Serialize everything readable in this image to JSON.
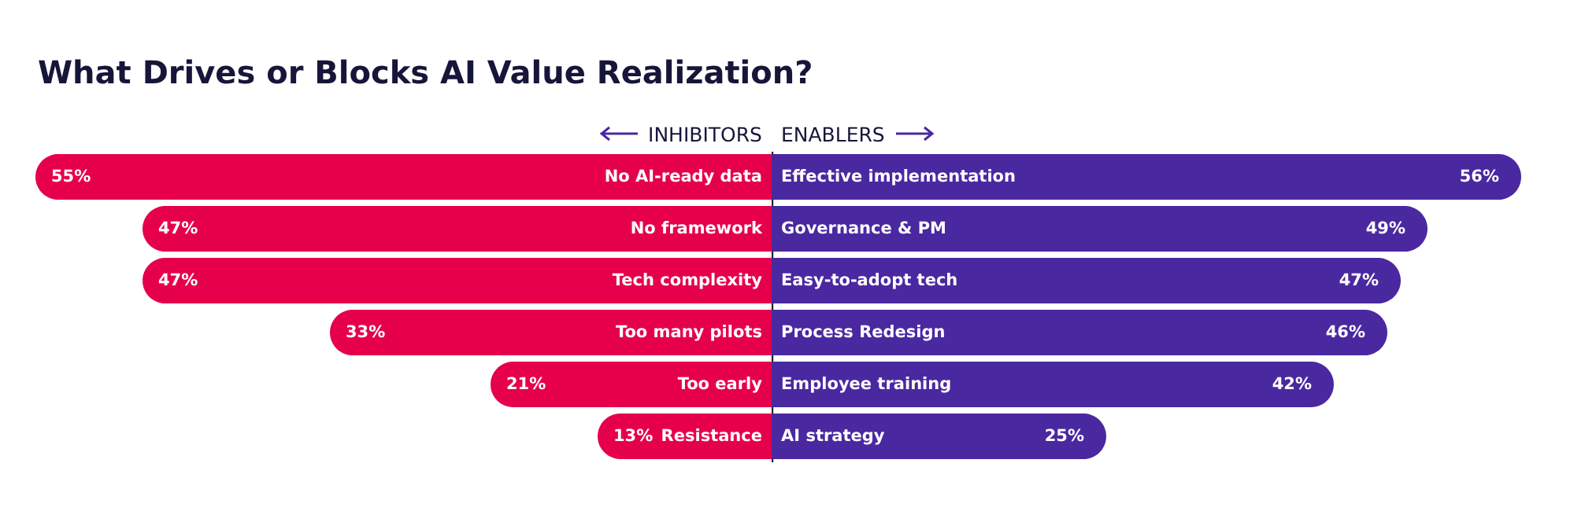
{
  "chart_data": [
    {
      "type": "bar",
      "orientation": "horizontal",
      "title": "What Drives or Blocks AI Value Realization?",
      "subtitle": "INHIBITORS",
      "categories": [
        "No AI-ready data",
        "No framework",
        "Tech complexity",
        "Too many pilots",
        "Too early",
        "Resistance"
      ],
      "values": [
        55,
        47,
        47,
        33,
        21,
        13
      ],
      "value_labels": [
        "55%",
        "47%",
        "47%",
        "33%",
        "21%",
        "13%"
      ],
      "color": "#e6004c",
      "xlim": [
        56,
        0
      ]
    },
    {
      "type": "bar",
      "orientation": "horizontal",
      "subtitle": "ENABLERS",
      "categories": [
        "Effective implementation",
        "Governance & PM",
        "Easy-to-adopt tech",
        "Process Redesign",
        "Employee training",
        "AI strategy"
      ],
      "values": [
        56,
        49,
        47,
        46,
        42,
        25
      ],
      "value_labels": [
        "56%",
        "49%",
        "47%",
        "46%",
        "42%",
        "25%"
      ],
      "color": "#4a28a0",
      "xlim": [
        0,
        56
      ]
    }
  ]
}
